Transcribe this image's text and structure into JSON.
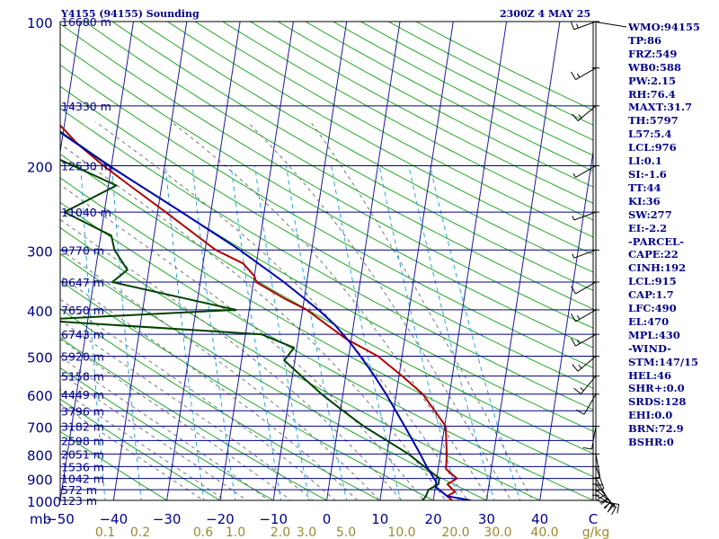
{
  "header": {
    "station": "Y4155 (94155) Sounding",
    "time": "2300Z  4 MAY 25"
  },
  "stats": [
    "WMO:94155",
    "TP:86",
    "FRZ:549",
    "WB0:588",
    "PW:2.15",
    "RH:76.4",
    "MAXT:31.7",
    "TH:5797",
    "L57:5.4",
    "LCL:976",
    "LI:0.1",
    "SI:-1.6",
    "TT:44",
    "KI:36",
    "SW:277",
    "EI:-2.2",
    "-PARCEL-",
    "CAPE:22",
    "CINH:192",
    "LCL:915",
    "CAP:1.7",
    "LFC:490",
    "EL:470",
    "MPL:430",
    "-WIND-",
    "STM:147/15",
    "HEL:46",
    "SHR+:0.0",
    "SRDS:128",
    "EHI:0.0",
    "BRN:72.9",
    "BSHR:0"
  ],
  "chart_data": {
    "type": "line",
    "title": "Y4155 (94155) Sounding",
    "xlabel": "",
    "ylabel": "mb",
    "yscale": "log",
    "ylim": [
      1000,
      100
    ],
    "xlim": [
      -50,
      50
    ],
    "pressure_ticks": [
      100,
      200,
      300,
      400,
      500,
      600,
      700,
      800,
      900,
      1000
    ],
    "temperature_ticks": [
      -50,
      -40,
      -30,
      -20,
      -10,
      0,
      10,
      20,
      30,
      40,
      50
    ],
    "temperature_tick_labels": [
      "−50",
      "−40",
      "−30",
      "−20",
      "−10",
      "0",
      "10",
      "20",
      "30",
      "40",
      "C"
    ],
    "unit_left": "mb",
    "mixing_ratio_ticks": [
      "0.1",
      "0.2",
      "0.6",
      "1.0",
      "2.0",
      "3.0",
      "5.0",
      "10.0",
      "20.0",
      "30.0",
      "40.0"
    ],
    "mixing_ratio_unit": "g/kg",
    "height_labels": [
      {
        "p": 100,
        "label": "16680 m"
      },
      {
        "p": 150,
        "label": "14330 m"
      },
      {
        "p": 200,
        "label": "12530 m"
      },
      {
        "p": 250,
        "label": "11040 m"
      },
      {
        "p": 300,
        "label": "9770 m"
      },
      {
        "p": 350,
        "label": "8647 m"
      },
      {
        "p": 400,
        "label": "7650 m"
      },
      {
        "p": 450,
        "label": "6743 m"
      },
      {
        "p": 500,
        "label": "5920 m"
      },
      {
        "p": 550,
        "label": "5158 m"
      },
      {
        "p": 600,
        "label": "4449 m"
      },
      {
        "p": 650,
        "label": "3796 m"
      },
      {
        "p": 700,
        "label": "3182 m"
      },
      {
        "p": 750,
        "label": "2598 m"
      },
      {
        "p": 800,
        "label": "2051 m"
      },
      {
        "p": 850,
        "label": "1536 m"
      },
      {
        "p": 900,
        "label": "1042 m"
      },
      {
        "p": 950,
        "label": "572 m"
      },
      {
        "p": 1000,
        "label": "123 m"
      }
    ],
    "series": [
      {
        "name": "Temperature",
        "color": "#b00000",
        "points": [
          [
            1000,
            23.5
          ],
          [
            980,
            22.5
          ],
          [
            960,
            23.8
          ],
          [
            925,
            22.2
          ],
          [
            900,
            23.8
          ],
          [
            860,
            21.5
          ],
          [
            800,
            21.2
          ],
          [
            700,
            20.2
          ],
          [
            600,
            15.0
          ],
          [
            550,
            10.6
          ],
          [
            500,
            5.5
          ],
          [
            460,
            -1.0
          ],
          [
            430,
            -5.0
          ],
          [
            400,
            -9.2
          ],
          [
            380,
            -13.5
          ],
          [
            350,
            -19.5
          ],
          [
            340,
            -20.0
          ],
          [
            320,
            -22.5
          ],
          [
            300,
            -28.0
          ],
          [
            250,
            -38.5
          ],
          [
            220,
            -46.0
          ],
          [
            200,
            -51.5
          ],
          [
            180,
            -57.0
          ],
          [
            160,
            -62.0
          ],
          [
            140,
            -66.0
          ],
          [
            120,
            -69.5
          ],
          [
            110,
            -73.5
          ],
          [
            105,
            -69.5
          ],
          [
            102,
            -67.5
          ],
          [
            100,
            -68.5
          ]
        ]
      },
      {
        "name": "Dew point",
        "color": "#004000",
        "points": [
          [
            1000,
            18.0
          ],
          [
            980,
            18.5
          ],
          [
            950,
            18.8
          ],
          [
            925,
            20.5
          ],
          [
            900,
            20.5
          ],
          [
            800,
            14.0
          ],
          [
            700,
            4.8
          ],
          [
            650,
            0.5
          ],
          [
            600,
            -4.0
          ],
          [
            550,
            -8.3
          ],
          [
            510,
            -12.0
          ],
          [
            500,
            -11.5
          ],
          [
            480,
            -10.5
          ],
          [
            450,
            -17.0
          ],
          [
            420,
            -60.0
          ],
          [
            400,
            -22.5
          ],
          [
            350,
            -46.5
          ],
          [
            330,
            -44.0
          ],
          [
            300,
            -47.0
          ],
          [
            280,
            -48.0
          ],
          [
            250,
            -57.5
          ],
          [
            220,
            -48.5
          ],
          [
            170,
            -72.0
          ],
          [
            150,
            -75.0
          ],
          [
            125,
            -82.0
          ],
          [
            120,
            -83.0
          ],
          [
            115,
            -80.5
          ],
          [
            100,
            -82.0
          ]
        ]
      },
      {
        "name": "Parcel path",
        "color": "#0000b0",
        "points": [
          [
            1000,
            27.0
          ],
          [
            980,
            22.5
          ],
          [
            940,
            20.2
          ],
          [
            915,
            20.0
          ],
          [
            850,
            17.8
          ],
          [
            800,
            16.2
          ],
          [
            700,
            12.5
          ],
          [
            600,
            8.1
          ],
          [
            550,
            5.4
          ],
          [
            500,
            2.2
          ],
          [
            470,
            0.0
          ],
          [
            430,
            -3.5
          ],
          [
            400,
            -7.0
          ],
          [
            350,
            -14.3
          ],
          [
            300,
            -23.5
          ],
          [
            250,
            -35.5
          ],
          [
            200,
            -50.5
          ],
          [
            150,
            -68.5
          ],
          [
            120,
            -80.5
          ],
          [
            100,
            -85.0
          ]
        ]
      }
    ],
    "wind_barbs": [
      {
        "p": 1000,
        "dir": 100,
        "spd": 15
      },
      {
        "p": 975,
        "dir": 120,
        "spd": 20
      },
      {
        "p": 950,
        "dir": 130,
        "spd": 20
      },
      {
        "p": 925,
        "dir": 140,
        "spd": 20
      },
      {
        "p": 900,
        "dir": 150,
        "spd": 20
      },
      {
        "p": 850,
        "dir": 160,
        "spd": 15
      },
      {
        "p": 800,
        "dir": 170,
        "spd": 10
      },
      {
        "p": 700,
        "dir": 190,
        "spd": 10
      },
      {
        "p": 600,
        "dir": 210,
        "spd": 10
      },
      {
        "p": 550,
        "dir": 220,
        "spd": 15
      },
      {
        "p": 500,
        "dir": 230,
        "spd": 15
      },
      {
        "p": 450,
        "dir": 240,
        "spd": 15
      },
      {
        "p": 400,
        "dir": 240,
        "spd": 15
      },
      {
        "p": 350,
        "dir": 240,
        "spd": 10
      },
      {
        "p": 300,
        "dir": 250,
        "spd": 5
      },
      {
        "p": 250,
        "dir": 250,
        "spd": 5
      },
      {
        "p": 200,
        "dir": 240,
        "spd": 5
      },
      {
        "p": 150,
        "dir": 230,
        "spd": 15
      },
      {
        "p": 125,
        "dir": 240,
        "spd": 15
      },
      {
        "p": 100,
        "dir": 250,
        "spd": 15
      }
    ],
    "colors": {
      "isobar": "#00008b",
      "isotherm": "#1a1aa0",
      "dry_adiabat": "#22aa22",
      "moist_adiabat": "#777777",
      "mixing_ratio": "#22aadd",
      "mixing_ratio_label": "#9b8a2a",
      "header": "#00008b"
    }
  }
}
